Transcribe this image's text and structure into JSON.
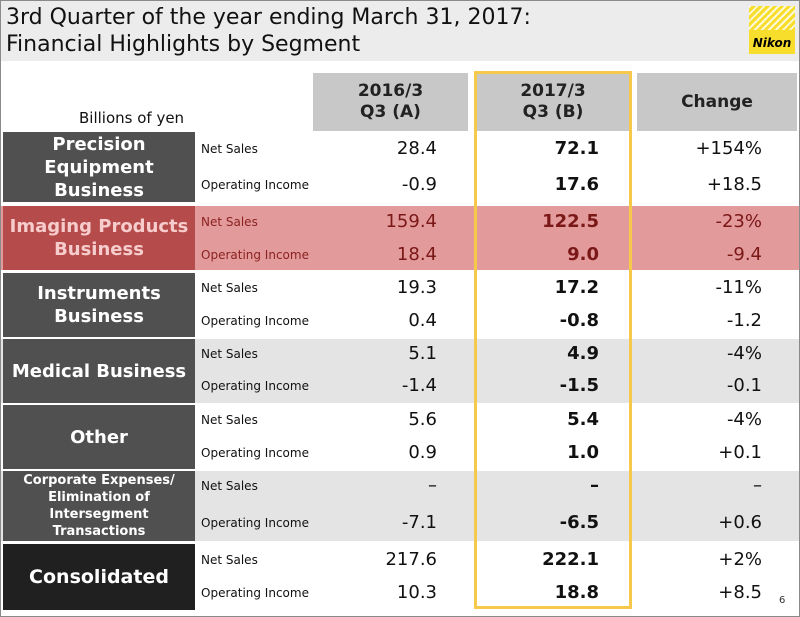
{
  "title": {
    "line1": "3rd Quarter of the year ending March 31, 2017:",
    "line2": "Financial Highlights by Segment"
  },
  "logo": {
    "text": "Nikon",
    "color": "#f7dd2c"
  },
  "units": "Billions of yen",
  "columns": {
    "a": {
      "line1": "2016/3",
      "line2": "Q3 (A)"
    },
    "b": {
      "line1": "2017/3",
      "line2": "Q3 (B)"
    },
    "change": "Change"
  },
  "highlight_color": "#f6c94a",
  "segments": [
    {
      "name": "Precision Equipment Business",
      "rows": [
        {
          "label": "Net Sales",
          "a": "28.4",
          "b": "72.1",
          "change": "+154%"
        },
        {
          "label": "Operating Income",
          "a": "-0.9",
          "b": "17.6",
          "change": "+18.5"
        }
      ]
    },
    {
      "name": "Imaging Products Business",
      "highlighted": true,
      "rows": [
        {
          "label": "Net Sales",
          "a": "159.4",
          "b": "122.5",
          "change": "-23%"
        },
        {
          "label": "Operating Income",
          "a": "18.4",
          "b": "9.0",
          "change": "-9.4"
        }
      ]
    },
    {
      "name": "Instruments Business",
      "rows": [
        {
          "label": "Net Sales",
          "a": "19.3",
          "b": "17.2",
          "change": "-11%"
        },
        {
          "label": "Operating Income",
          "a": "0.4",
          "b": "-0.8",
          "change": "-1.2"
        }
      ]
    },
    {
      "name": "Medical Business",
      "rows": [
        {
          "label": "Net Sales",
          "a": "5.1",
          "b": "4.9",
          "change": "-4%"
        },
        {
          "label": "Operating Income",
          "a": "-1.4",
          "b": "-1.5",
          "change": "-0.1"
        }
      ]
    },
    {
      "name": "Other",
      "rows": [
        {
          "label": "Net Sales",
          "a": "5.6",
          "b": "5.4",
          "change": "-4%"
        },
        {
          "label": "Operating Income",
          "a": "0.9",
          "b": "1.0",
          "change": "+0.1"
        }
      ]
    },
    {
      "name": "Corporate Expenses/ Elimination of Intersegment Transactions",
      "rows": [
        {
          "label": "Net Sales",
          "a": "–",
          "b": "–",
          "change": "–"
        },
        {
          "label": "Operating Income",
          "a": "-7.1",
          "b": "-6.5",
          "change": "+0.6"
        }
      ]
    },
    {
      "name": "Consolidated",
      "rows": [
        {
          "label": "Net Sales",
          "a": "217.6",
          "b": "222.1",
          "change": "+2%"
        },
        {
          "label": "Operating Income",
          "a": "10.3",
          "b": "18.8",
          "change": "+8.5"
        }
      ]
    }
  ],
  "page_number": "6"
}
